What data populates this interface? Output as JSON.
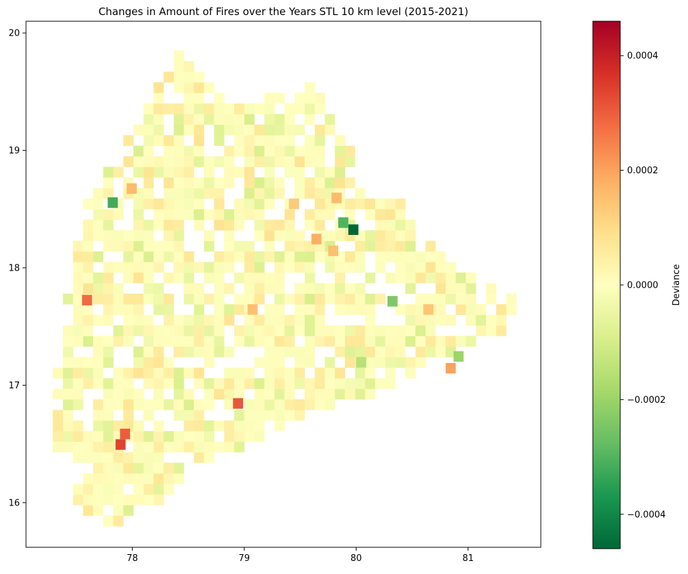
{
  "chart_data": {
    "type": "heatmap",
    "title": "Changes in Amount of Fires over the Years STL 10 km level (2015-2021)",
    "xlabel": "",
    "ylabel": "",
    "xlim": [
      77.05,
      81.65
    ],
    "ylim": [
      15.62,
      20.1
    ],
    "x_ticks": [
      78,
      79,
      80,
      81
    ],
    "x_tick_labels": [
      "78",
      "79",
      "80",
      "81"
    ],
    "y_ticks": [
      16,
      17,
      18,
      19,
      20
    ],
    "y_tick_labels": [
      "16",
      "17",
      "18",
      "19",
      "20"
    ],
    "colorbar": {
      "label": "Deviance",
      "colormap": "RdYlGn_r",
      "range": [
        -0.00046,
        0.00046
      ],
      "ticks": [
        -0.0004,
        -0.0002,
        0.0,
        0.0002,
        0.0004
      ],
      "tick_labels": [
        "−0.0004",
        "−0.0002",
        "0.0000",
        "0.0002",
        "0.0004"
      ],
      "colors": [
        "#006837",
        "#1a9850",
        "#66bd63",
        "#a6d96a",
        "#d9ef8b",
        "#ffffbf",
        "#fee08b",
        "#fdae61",
        "#f46d43",
        "#d73027",
        "#a50026"
      ]
    },
    "grid": false,
    "cell_size_deg": 0.09,
    "cells": [
      {
        "x": 77.85,
        "y": 16.45,
        "v": 0.00034
      },
      {
        "x": 77.89,
        "y": 16.54,
        "v": 0.0003
      },
      {
        "x": 78.9,
        "y": 16.8,
        "v": 0.00031
      },
      {
        "x": 77.55,
        "y": 17.68,
        "v": 0.00028
      },
      {
        "x": 79.6,
        "y": 18.2,
        "v": 0.00018
      },
      {
        "x": 79.75,
        "y": 18.1,
        "v": 0.00015
      },
      {
        "x": 80.8,
        "y": 17.1,
        "v": 0.0002
      },
      {
        "x": 80.6,
        "y": 17.6,
        "v": 0.00014
      },
      {
        "x": 79.78,
        "y": 18.55,
        "v": 0.00016
      },
      {
        "x": 77.95,
        "y": 18.63,
        "v": 0.00016
      },
      {
        "x": 79.03,
        "y": 17.6,
        "v": 0.00015
      },
      {
        "x": 79.4,
        "y": 18.5,
        "v": 0.00013
      },
      {
        "x": 79.93,
        "y": 18.28,
        "v": -0.00046
      },
      {
        "x": 79.84,
        "y": 18.34,
        "v": -0.0003
      },
      {
        "x": 77.78,
        "y": 18.51,
        "v": -0.00032
      },
      {
        "x": 80.28,
        "y": 17.67,
        "v": -0.00024
      },
      {
        "x": 80.87,
        "y": 17.2,
        "v": -0.0002
      },
      {
        "x": 80.0,
        "y": 17.15,
        "v": -0.00015
      }
    ]
  }
}
